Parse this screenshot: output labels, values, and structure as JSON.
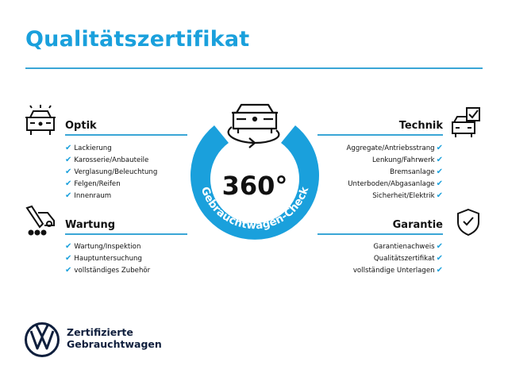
{
  "title": "Qualitätszertifikat",
  "center": {
    "value": "360°",
    "ring_text": "Gebrauchtwagen-Check",
    "ring_color": "#1aa0dc"
  },
  "accent": "#1aa0dc",
  "sections": {
    "optik": {
      "heading": "Optik",
      "icon": "car-lights-icon",
      "items": [
        "Lackierung",
        "Karosserie/Anbauteile",
        "Verglasung/Beleuchtung",
        "Felgen/Reifen",
        "Innenraum"
      ]
    },
    "wartung": {
      "heading": "Wartung",
      "icon": "service-wrench-car-icon",
      "items": [
        "Wartung/Inspektion",
        "Hauptuntersuchung",
        "vollständiges Zubehör"
      ]
    },
    "technik": {
      "heading": "Technik",
      "icon": "car-checkbox-icon",
      "items": [
        "Aggregate/Antriebsstrang",
        "Lenkung/Fahrwerk",
        "Bremsanlage",
        "Unterboden/Abgasanlage",
        "Sicherheit/Elektrik"
      ]
    },
    "garantie": {
      "heading": "Garantie",
      "icon": "shield-check-icon",
      "items": [
        "Garantienachweis",
        "Qualitätszertifikat",
        "vollständige Unterlagen"
      ]
    }
  },
  "check_mark": "✔",
  "brand": {
    "line1": "Zertifizierte",
    "line2": "Gebrauchtwagen",
    "logo": "VW"
  }
}
